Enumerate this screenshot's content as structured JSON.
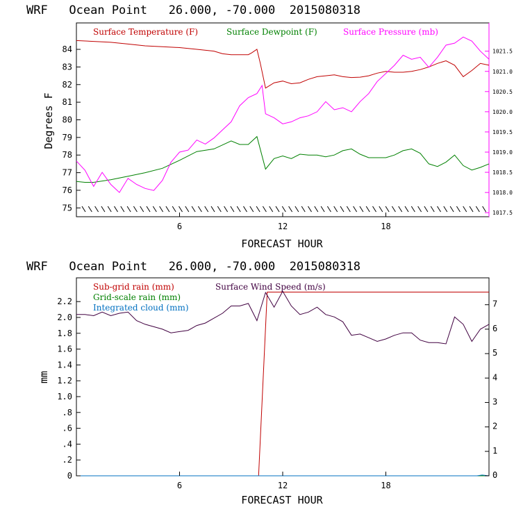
{
  "chart_data": [
    {
      "type": "line",
      "title": "WRF   Ocean Point   26.000, -70.000  2015080318",
      "xlabel": "FORECAST HOUR",
      "ylabel": "Degrees F",
      "xlim": [
        0,
        24
      ],
      "ylim": [
        74.5,
        85.5
      ],
      "y2lim": [
        1017.4,
        1022.2
      ],
      "x_ticks": [
        "6",
        "12",
        "18"
      ],
      "y_ticks": [
        "75",
        "76",
        "77",
        "78",
        "79",
        "80",
        "81",
        "82",
        "83",
        "84"
      ],
      "y2_ticks": [
        "1017.5",
        "1018.0",
        "1018.5",
        "1019.0",
        "1019.5",
        "1020.0",
        "1020.5",
        "1021.0",
        "1021.5"
      ],
      "series": [
        {
          "name": "Surface Temperature (F)",
          "color": "#c00000",
          "axis": "left",
          "x": [
            0,
            1,
            2,
            3,
            4,
            5,
            6,
            7,
            8,
            8.5,
            9,
            9.5,
            10,
            10.2,
            10.5,
            10.7,
            11,
            11.5,
            12,
            12.5,
            13,
            13.5,
            14,
            14.5,
            15,
            15.5,
            16,
            16.5,
            17,
            17.5,
            18,
            18.5,
            19,
            19.5,
            20,
            20.5,
            21,
            21.5,
            22,
            22.5,
            23,
            23.5,
            24
          ],
          "y": [
            84.5,
            84.45,
            84.4,
            84.3,
            84.2,
            84.15,
            84.1,
            84.0,
            83.9,
            83.75,
            83.7,
            83.7,
            83.7,
            83.8,
            84.0,
            83.2,
            81.8,
            82.1,
            82.2,
            82.05,
            82.1,
            82.3,
            82.45,
            82.5,
            82.55,
            82.45,
            82.4,
            82.42,
            82.5,
            82.65,
            82.75,
            82.7,
            82.7,
            82.75,
            82.85,
            83.0,
            83.2,
            83.35,
            83.1,
            82.45,
            82.8,
            83.2,
            83.1
          ]
        },
        {
          "name": "Surface Dewpoint (F)",
          "color": "#008000",
          "axis": "left",
          "x": [
            0,
            0.5,
            1,
            2,
            3,
            4,
            5,
            6,
            7,
            8,
            9,
            9.5,
            10,
            10.5,
            11,
            11.5,
            12,
            12.5,
            13,
            13.5,
            14,
            14.5,
            15,
            15.5,
            16,
            16.5,
            17,
            18,
            18.5,
            19,
            19.5,
            20,
            20.5,
            21,
            21.5,
            22,
            22.5,
            23,
            23.5,
            24
          ],
          "y": [
            76.5,
            76.45,
            76.45,
            76.6,
            76.8,
            77.0,
            77.25,
            77.7,
            78.2,
            78.35,
            78.8,
            78.6,
            78.6,
            79.05,
            77.2,
            77.8,
            77.95,
            77.8,
            78.05,
            78.0,
            78.0,
            77.9,
            78.0,
            78.25,
            78.35,
            78.05,
            77.85,
            77.85,
            78.0,
            78.25,
            78.35,
            78.1,
            77.5,
            77.35,
            77.6,
            78.0,
            77.4,
            77.15,
            77.3,
            77.5
          ]
        },
        {
          "name": "Surface Pressure (mb)",
          "color": "#ff00ff",
          "axis": "right",
          "x": [
            0,
            0.5,
            1,
            1.5,
            2,
            2.5,
            3,
            3.5,
            4,
            4.5,
            5,
            5.5,
            6,
            6.5,
            7,
            7.5,
            8,
            8.5,
            9,
            9.5,
            10,
            10.5,
            10.8,
            11,
            11.5,
            12,
            12.5,
            13,
            13.5,
            14,
            14.5,
            15,
            15.5,
            16,
            16.5,
            17,
            17.5,
            18,
            18.5,
            19,
            19.5,
            20,
            20.5,
            21,
            21.5,
            22,
            22.5,
            23,
            23.5,
            24
          ],
          "y": [
            1018.78,
            1018.55,
            1018.15,
            1018.5,
            1018.2,
            1018.0,
            1018.35,
            1018.2,
            1018.1,
            1018.05,
            1018.3,
            1018.75,
            1019.0,
            1019.05,
            1019.3,
            1019.2,
            1019.35,
            1019.55,
            1019.75,
            1020.15,
            1020.35,
            1020.45,
            1020.65,
            1019.95,
            1019.85,
            1019.7,
            1019.75,
            1019.85,
            1019.9,
            1020.0,
            1020.25,
            1020.05,
            1020.1,
            1020.0,
            1020.25,
            1020.45,
            1020.75,
            1020.95,
            1021.15,
            1021.4,
            1021.3,
            1021.35,
            1021.1,
            1021.35,
            1021.65,
            1021.7,
            1021.85,
            1021.75,
            1021.5,
            1021.3
          ]
        }
      ],
      "legend": [
        "Surface Temperature (F)",
        "Surface Dewpoint (F)",
        "Surface Pressure (mb)"
      ],
      "legend_position": "top"
    },
    {
      "type": "line",
      "title": "WRF   Ocean Point   26.000, -70.000  2015080318",
      "xlabel": "FORECAST HOUR",
      "ylabel": "mm",
      "xlim": [
        0,
        24
      ],
      "ylim": [
        0,
        2.5
      ],
      "y2lim": [
        0,
        8.1
      ],
      "x_ticks": [
        "6",
        "12",
        "18"
      ],
      "y_ticks": [
        "0",
        ".2",
        ".4",
        ".6",
        ".8",
        "1.0",
        "1.2",
        "1.4",
        "1.6",
        "1.8",
        "2.0",
        "2.2"
      ],
      "y2_ticks": [
        "0",
        "1",
        "2",
        "3",
        "4",
        "5",
        "6",
        "7"
      ],
      "series": [
        {
          "name": "Sub-grid rain (mm)",
          "color": "#c00000",
          "axis": "left",
          "x": [
            0,
            10.5,
            10.6,
            11.1,
            24
          ],
          "y": [
            0,
            0,
            0,
            2.32,
            2.32
          ]
        },
        {
          "name": "Grid-scale rain (mm)",
          "color": "#008000",
          "axis": "left",
          "x": [
            0,
            24
          ],
          "y": [
            0,
            0
          ]
        },
        {
          "name": "Integrated cloud (mm)",
          "color": "#0070c0",
          "axis": "left",
          "x": [
            0,
            23.3,
            23.6,
            24
          ],
          "y": [
            0,
            0,
            0.01,
            0
          ]
        },
        {
          "name": "Surface Wind Speed (m/s)",
          "color": "#400040",
          "axis": "right",
          "x": [
            0,
            0.5,
            1,
            1.5,
            2,
            2.5,
            3,
            3.5,
            4,
            4.5,
            5,
            5.5,
            6,
            6.5,
            7,
            7.5,
            8,
            8.5,
            9,
            9.5,
            10,
            10.5,
            11,
            11.5,
            12,
            12.5,
            13,
            13.5,
            14,
            14.5,
            15,
            15.5,
            16,
            16.5,
            17,
            17.5,
            18,
            18.5,
            19,
            19.5,
            20,
            20.5,
            21,
            21.5,
            22,
            22.5,
            23,
            23.5,
            24
          ],
          "y": [
            6.6,
            6.6,
            6.55,
            6.7,
            6.55,
            6.65,
            6.7,
            6.35,
            6.2,
            6.1,
            6.0,
            5.85,
            5.9,
            5.95,
            6.15,
            6.25,
            6.45,
            6.65,
            6.95,
            6.95,
            7.05,
            6.35,
            7.5,
            6.9,
            7.55,
            6.95,
            6.6,
            6.7,
            6.9,
            6.6,
            6.5,
            6.3,
            5.75,
            5.8,
            5.65,
            5.5,
            5.6,
            5.75,
            5.85,
            5.85,
            5.55,
            5.45,
            5.45,
            5.4,
            6.5,
            6.2,
            5.5,
            6.0,
            6.2
          ]
        }
      ],
      "legend": [
        "Sub-grid rain (mm)",
        "Surface Wind Speed (m/s)",
        "Grid-scale rain (mm)",
        "Integrated cloud (mm)"
      ],
      "legend_position": "top-left"
    }
  ]
}
